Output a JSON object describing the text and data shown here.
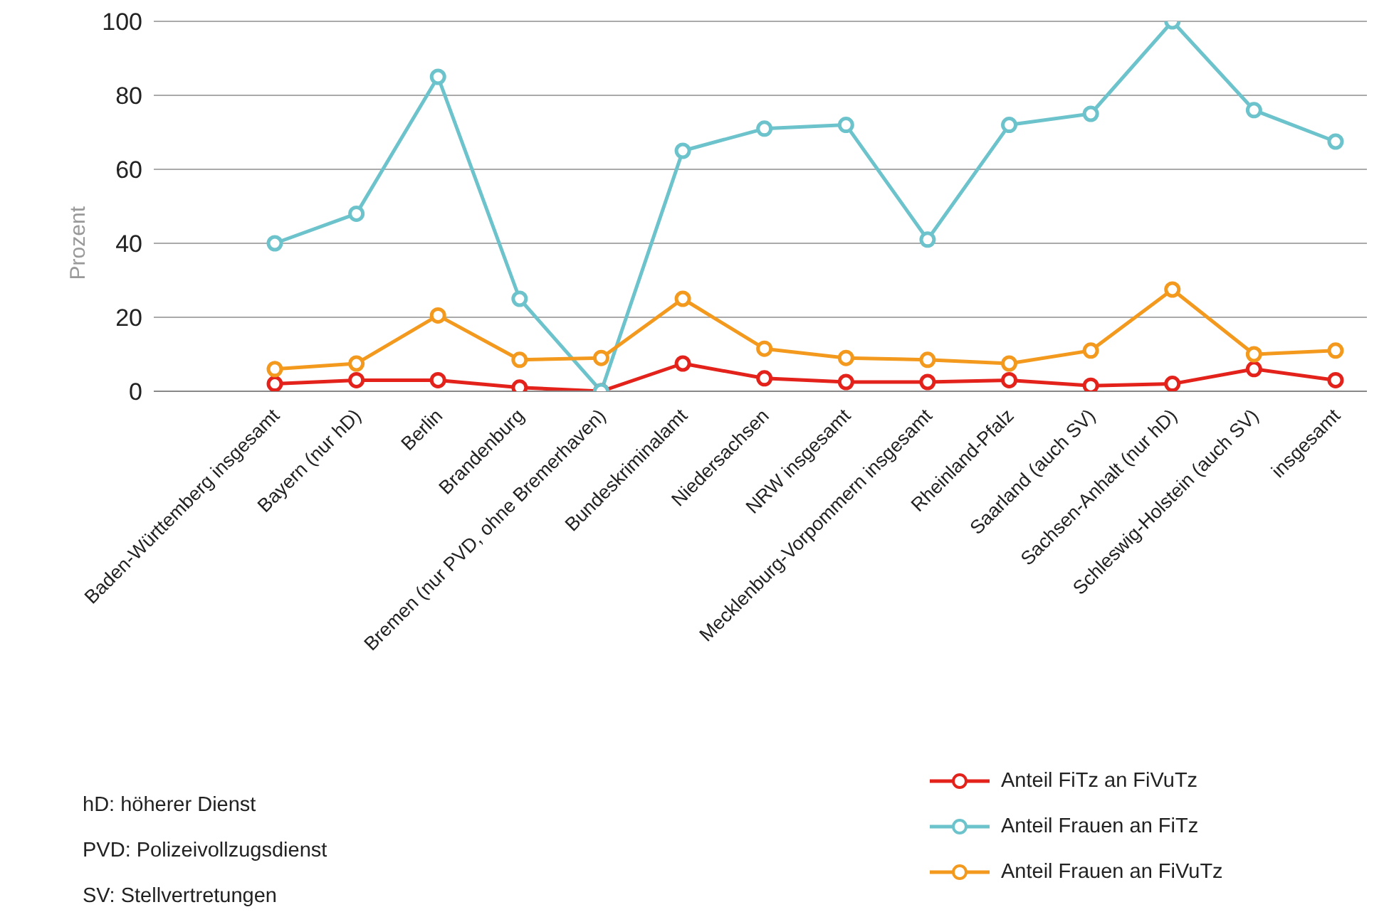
{
  "chart_data": {
    "type": "line",
    "ylabel": "Prozent",
    "categories": [
      "Baden-Württemberg insgesamt",
      "Bayern (nur hD)",
      "Berlin",
      "Brandenburg",
      "Bremen (nur PVD, ohne Bremerhaven)",
      "Bundeskriminalamt",
      "Niedersachsen",
      "NRW insgesamt",
      "Mecklenburg-Vorpommern insgesamt",
      "Rheinland-Pfalz",
      "Saarland (auch SV)",
      "Sachsen-Anhalt (nur hD)",
      "Schleswig-Holstein (auch SV)",
      "insgesamt"
    ],
    "series": [
      {
        "name": "Anteil FiTz an FiVuTz",
        "color": "#e3231b",
        "values": [
          2,
          3,
          3,
          1,
          0,
          7.5,
          3.5,
          2.5,
          2.5,
          3,
          1.5,
          2,
          6,
          3
        ]
      },
      {
        "name": "Anteil Frauen an FiTz",
        "color": "#6cc3cc",
        "values": [
          40,
          48,
          85,
          25,
          0,
          65,
          71,
          72,
          41,
          72,
          75,
          100,
          76,
          67.5
        ]
      },
      {
        "name": "Anteil Frauen an FiVuTz",
        "color": "#f39a1e",
        "values": [
          6,
          7.5,
          20.5,
          8.5,
          9,
          25,
          11.5,
          9,
          8.5,
          7.5,
          11,
          27.5,
          10,
          11
        ]
      }
    ],
    "ylim": [
      0,
      100
    ],
    "yticks": [
      0,
      20,
      40,
      60,
      80,
      100
    ],
    "grid": "y",
    "legend": "bottom right",
    "marker": "circle",
    "line_style": "solid",
    "annotations": [
      "hD: höherer Dienst",
      "PVD: Polizeivollzugsdienst",
      "SV: Stellvertretungen"
    ]
  }
}
